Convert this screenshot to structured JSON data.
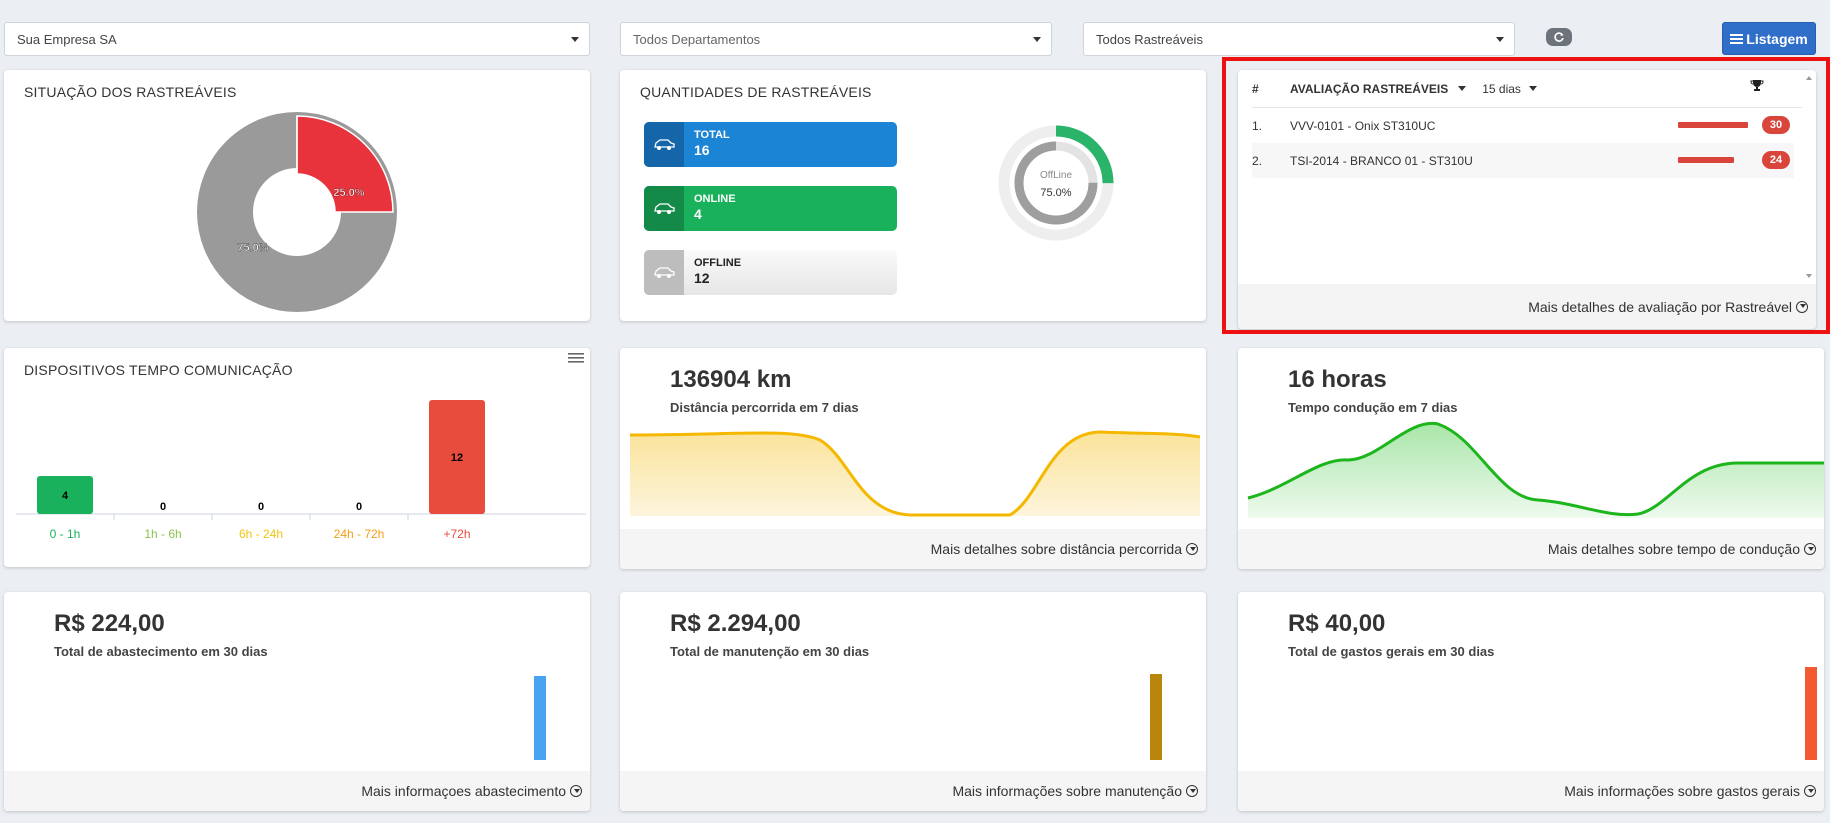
{
  "filters": {
    "company": "Sua Empresa SA",
    "department": "Todos Departamentos",
    "trackables": "Todos Rastreáveis"
  },
  "toolbar": {
    "listagem_label": "Listagem",
    "refresh_icon": "refresh-icon",
    "list_icon": "list-icon"
  },
  "status_card": {
    "title": "SITUAÇÃO DOS RASTREÁVEIS",
    "slices": [
      {
        "label": "25.0%",
        "value": 25.0,
        "color": "#e8323c"
      },
      {
        "label": "75.0%",
        "value": 75.0,
        "color": "#9a9a9a"
      }
    ]
  },
  "quantities_card": {
    "title": "QUANTIDADES DE RASTREÁVEIS",
    "total": {
      "label": "TOTAL",
      "value": "16",
      "color": "#1b84d5"
    },
    "online": {
      "label": "ONLINE",
      "value": "4",
      "color": "#19b15c"
    },
    "offline": {
      "label": "OFFLINE",
      "value": "12",
      "color": "#ececec"
    },
    "gauge": {
      "label": "OffLine",
      "percent": "75.0%",
      "value": 75.0,
      "outer_online": 25.0
    }
  },
  "ranking_card": {
    "col_num": "#",
    "col_title": "AVALIAÇÃO RASTREÁVEIS",
    "period": "15 dias",
    "trophy_icon": "trophy-icon",
    "rows": [
      {
        "num": "1.",
        "name": "VVV-0101 - Onix ST310UC",
        "score": "30",
        "score_value": 30
      },
      {
        "num": "2.",
        "name": "TSI-2014 - BRANCO 01 - ST310U",
        "score": "24",
        "score_value": 24
      }
    ],
    "footer": "Mais detalhes de avaliação por Rastreável"
  },
  "comm_card": {
    "title": "DISPOSITIVOS TEMPO COMUNICAÇÃO",
    "menu_icon": "hamburger-menu-icon"
  },
  "chart_data": [
    {
      "type": "bar",
      "title": "DISPOSITIVOS TEMPO COMUNICAÇÃO",
      "categories": [
        "0 - 1h",
        "1h - 6h",
        "6h - 24h",
        "24h - 72h",
        "+72h"
      ],
      "values": [
        4,
        0,
        0,
        0,
        12
      ],
      "colors": [
        "#19b15c",
        "#8bc34a",
        "#f1c40f",
        "#f39c12",
        "#e74c3c"
      ],
      "value_labels": [
        "4",
        "0",
        "0",
        "0",
        "12"
      ],
      "ylim": [
        0,
        12
      ]
    }
  ],
  "distance_card": {
    "value": "136904 km",
    "label": "Distância percorrida em 7 dias",
    "footer": "Mais detalhes sobre distância percorrida"
  },
  "driving_card": {
    "value": "16 horas",
    "label": "Tempo condução em 7 dias",
    "footer": "Mais detalhes sobre tempo de condução"
  },
  "fuel_card": {
    "value": "R$ 224,00",
    "label": "Total de abastecimento em 30 dias",
    "footer": "Mais informaçoes abastecimento",
    "bar_color": "#4aa3f0"
  },
  "maintenance_card": {
    "value": "R$ 2.294,00",
    "label": "Total de manutenção em 30 dias",
    "footer": "Mais informações sobre manutenção",
    "bar_color": "#b8860b"
  },
  "expenses_card": {
    "value": "R$ 40,00",
    "label": "Total de gastos gerais em 30 dias",
    "footer": "Mais informações sobre gastos gerais",
    "bar_color": "#f25a32"
  }
}
